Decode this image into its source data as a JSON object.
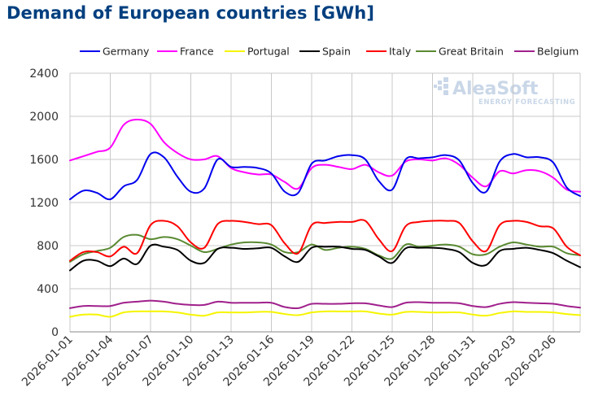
{
  "chart_data": {
    "type": "line",
    "title": "Demand of European countries [GWh]",
    "ylim": [
      0,
      2400
    ],
    "yticks": [
      0,
      400,
      800,
      1200,
      1600,
      2000,
      2400
    ],
    "xtick_labels": [
      "2026-01-01",
      "2026-01-04",
      "2026-01-07",
      "2026-01-10",
      "2026-01-13",
      "2026-01-16",
      "2026-01-19",
      "2026-01-22",
      "2026-01-25",
      "2026-01-28",
      "2026-01-31",
      "2026-02-03",
      "2026-02-06"
    ],
    "x": [
      "2026-01-01",
      "2026-01-02",
      "2026-01-03",
      "2026-01-04",
      "2026-01-05",
      "2026-01-06",
      "2026-01-07",
      "2026-01-08",
      "2026-01-09",
      "2026-01-10",
      "2026-01-11",
      "2026-01-12",
      "2026-01-13",
      "2026-01-14",
      "2026-01-15",
      "2026-01-16",
      "2026-01-17",
      "2026-01-18",
      "2026-01-19",
      "2026-01-20",
      "2026-01-21",
      "2026-01-22",
      "2026-01-23",
      "2026-01-24",
      "2026-01-25",
      "2026-01-26",
      "2026-01-27",
      "2026-01-28",
      "2026-01-29",
      "2026-01-30",
      "2026-01-31",
      "2026-02-01",
      "2026-02-02",
      "2026-02-03",
      "2026-02-04",
      "2026-02-05",
      "2026-02-06",
      "2026-02-07",
      "2026-02-08"
    ],
    "grid": true,
    "legend": "top",
    "series": [
      {
        "name": "Germany",
        "color": "#0000ee",
        "values": [
          1230,
          1310,
          1290,
          1230,
          1350,
          1410,
          1650,
          1620,
          1440,
          1300,
          1330,
          1600,
          1530,
          1530,
          1520,
          1470,
          1300,
          1290,
          1560,
          1590,
          1630,
          1640,
          1600,
          1400,
          1320,
          1600,
          1610,
          1620,
          1640,
          1590,
          1380,
          1300,
          1580,
          1650,
          1620,
          1620,
          1570,
          1340,
          1260
        ]
      },
      {
        "name": "France",
        "color": "#ff00ff",
        "values": [
          1590,
          1630,
          1670,
          1710,
          1920,
          1970,
          1930,
          1760,
          1660,
          1600,
          1600,
          1630,
          1520,
          1480,
          1460,
          1460,
          1390,
          1330,
          1520,
          1550,
          1530,
          1510,
          1550,
          1480,
          1450,
          1580,
          1600,
          1590,
          1610,
          1550,
          1430,
          1350,
          1490,
          1470,
          1500,
          1490,
          1430,
          1320,
          1300
        ]
      },
      {
        "name": "Portugal",
        "color": "#f5f500",
        "values": [
          140,
          160,
          160,
          140,
          180,
          190,
          190,
          190,
          180,
          160,
          150,
          180,
          180,
          180,
          185,
          185,
          165,
          155,
          180,
          190,
          190,
          190,
          190,
          170,
          160,
          185,
          185,
          180,
          180,
          180,
          160,
          150,
          175,
          190,
          185,
          185,
          180,
          165,
          155
        ]
      },
      {
        "name": "Spain",
        "color": "#000000",
        "values": [
          570,
          660,
          660,
          610,
          680,
          630,
          800,
          790,
          760,
          660,
          640,
          770,
          780,
          770,
          775,
          780,
          700,
          650,
          780,
          790,
          790,
          770,
          760,
          700,
          640,
          775,
          780,
          780,
          770,
          740,
          640,
          620,
          750,
          770,
          780,
          760,
          730,
          660,
          600
        ]
      },
      {
        "name": "Italy",
        "color": "#ff0000",
        "values": [
          660,
          740,
          740,
          700,
          790,
          730,
          990,
          1030,
          980,
          830,
          780,
          1000,
          1030,
          1020,
          1000,
          990,
          820,
          730,
          990,
          1010,
          1020,
          1020,
          1030,
          860,
          750,
          980,
          1020,
          1030,
          1030,
          1010,
          840,
          750,
          990,
          1030,
          1020,
          980,
          960,
          790,
          710
        ]
      },
      {
        "name": "Great Britain",
        "color": "#5a8a32",
        "values": [
          650,
          720,
          750,
          780,
          880,
          900,
          860,
          880,
          860,
          800,
          740,
          770,
          810,
          830,
          830,
          810,
          740,
          740,
          810,
          760,
          780,
          790,
          770,
          710,
          680,
          810,
          790,
          800,
          810,
          790,
          720,
          720,
          790,
          830,
          810,
          790,
          790,
          730,
          710
        ]
      },
      {
        "name": "Belgium",
        "color": "#a0208c",
        "values": [
          220,
          240,
          240,
          240,
          270,
          280,
          290,
          280,
          260,
          250,
          250,
          280,
          270,
          270,
          270,
          270,
          230,
          220,
          260,
          260,
          260,
          265,
          265,
          245,
          230,
          270,
          275,
          270,
          270,
          265,
          240,
          230,
          260,
          275,
          270,
          265,
          260,
          240,
          225
        ]
      }
    ]
  }
}
